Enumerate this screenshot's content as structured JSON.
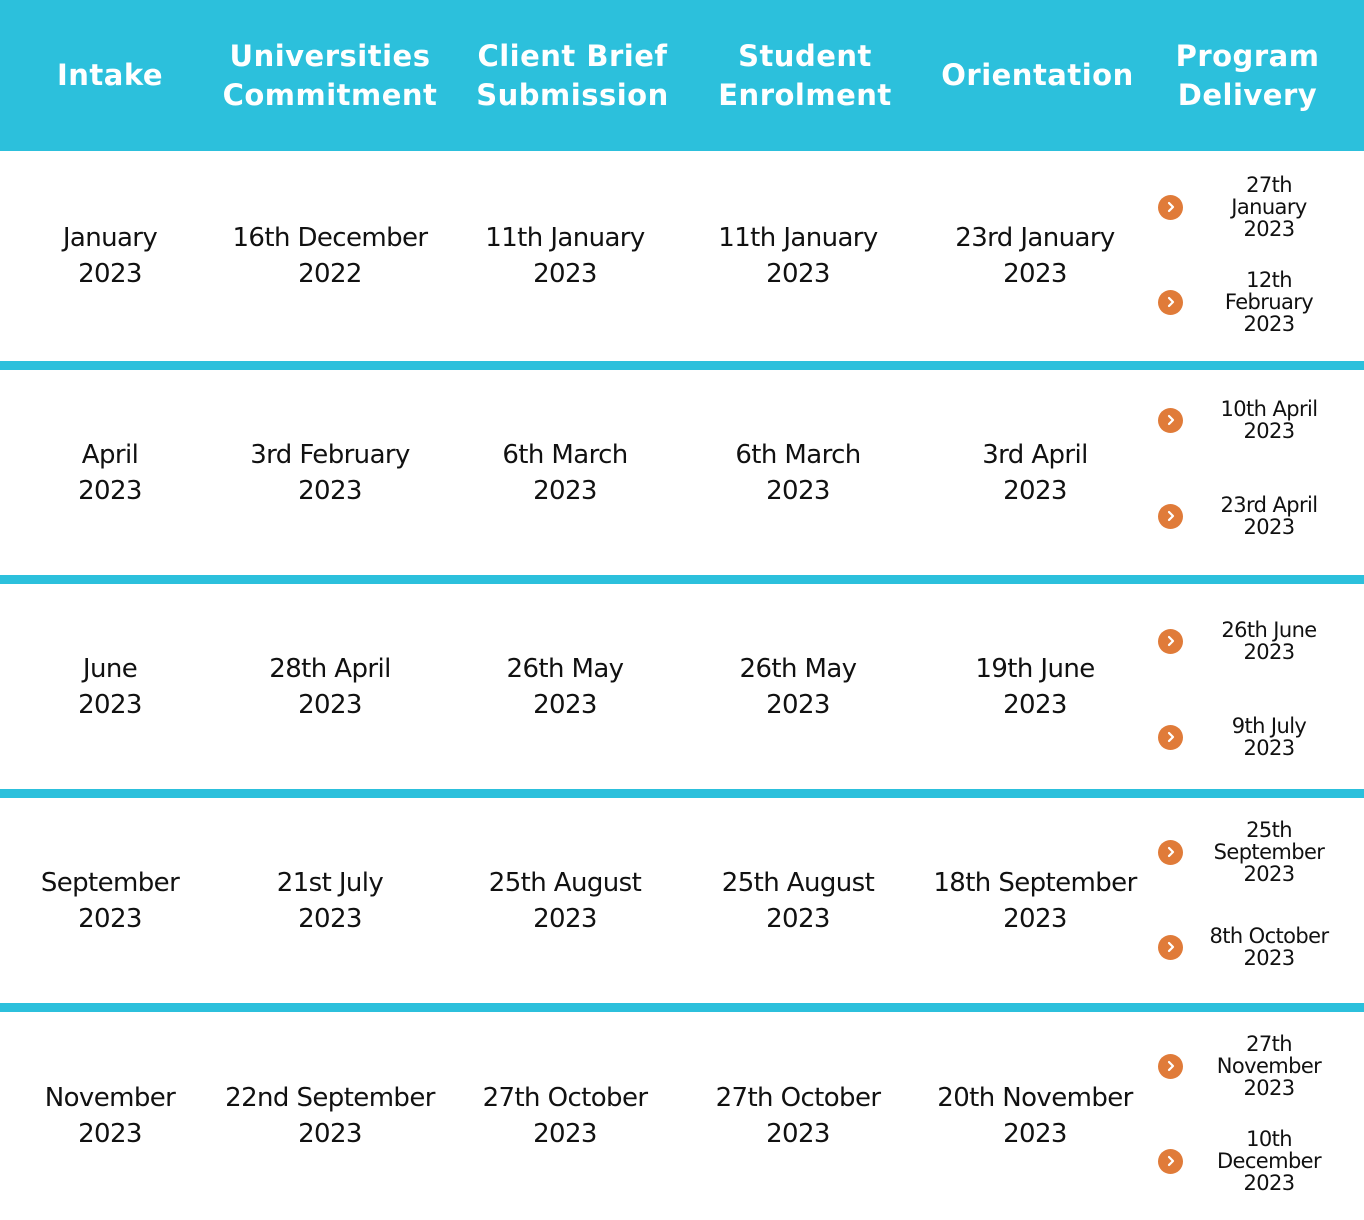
{
  "colors": {
    "accent": "#2cc0dc",
    "arrow": "#e07b39",
    "text": "#111111"
  },
  "icons": {
    "bullet": "chevron-right-icon"
  },
  "headers": [
    "Intake",
    "Universities\nCommitment",
    "Client Brief\nSubmission",
    "Student\nEnrolment",
    "Orientation",
    "Program\nDelivery"
  ],
  "rows": [
    {
      "intake": "January\n2023",
      "universities_commitment": "16th December\n2022",
      "client_brief_submission": "11th January\n2023",
      "student_enrolment": "11th January\n2023",
      "orientation": "23rd January\n2023",
      "program_delivery": [
        "27th\nJanuary\n2023",
        "12th\nFebruary\n2023"
      ]
    },
    {
      "intake": "April\n2023",
      "universities_commitment": "3rd February\n2023",
      "client_brief_submission": "6th March\n2023",
      "student_enrolment": "6th March\n2023",
      "orientation": "3rd April\n2023",
      "program_delivery": [
        "10th April\n2023",
        "23rd April\n2023"
      ]
    },
    {
      "intake": "June\n2023",
      "universities_commitment": "28th April\n2023",
      "client_brief_submission": "26th May\n2023",
      "student_enrolment": "26th May\n2023",
      "orientation": "19th June\n2023",
      "program_delivery": [
        "26th June\n2023",
        "9th July\n2023"
      ]
    },
    {
      "intake": "September\n2023",
      "universities_commitment": "21st July\n2023",
      "client_brief_submission": "25th August\n2023",
      "student_enrolment": "25th August\n2023",
      "orientation": "18th September\n2023",
      "program_delivery": [
        "25th\nSeptember\n2023",
        "8th October\n2023"
      ]
    },
    {
      "intake": "November\n2023",
      "universities_commitment": "22nd September\n2023",
      "client_brief_submission": "27th October\n2023",
      "student_enrolment": "27th October\n2023",
      "orientation": "20th November\n2023",
      "program_delivery": [
        "27th\nNovember\n2023",
        "10th\nDecember\n2023"
      ]
    }
  ]
}
